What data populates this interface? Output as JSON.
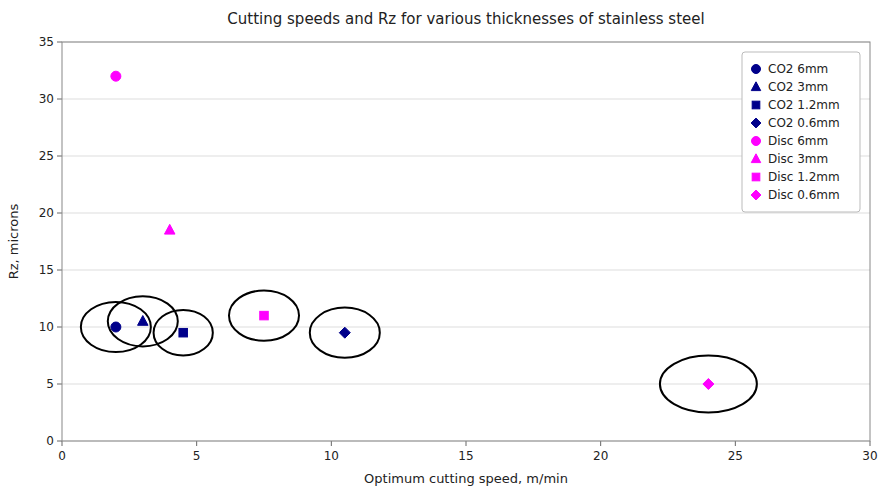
{
  "chart_data": {
    "type": "scatter",
    "title": "Cutting speeds and Rz for various thicknesses of stainless steel",
    "x_label": "Optimum cutting speed, m/min",
    "y_label": "Rz, microns",
    "xlim": [
      0,
      30
    ],
    "ylim": [
      0,
      35
    ],
    "xticks": [
      0,
      5,
      10,
      15,
      20,
      25,
      30
    ],
    "yticks": [
      0,
      5,
      10,
      15,
      20,
      25,
      30,
      35
    ],
    "grid": "y",
    "legend": "upper-right",
    "series": [
      {
        "name": "CO2 6mm",
        "color": "#00008B",
        "marker": "circle",
        "x": [
          2.0
        ],
        "values": [
          10.0
        ]
      },
      {
        "name": "CO2 3mm",
        "color": "#00008B",
        "marker": "triangle",
        "x": [
          3.0
        ],
        "values": [
          10.5
        ]
      },
      {
        "name": "CO2 1.2mm",
        "color": "#00008B",
        "marker": "square",
        "x": [
          4.5
        ],
        "values": [
          9.5
        ]
      },
      {
        "name": "CO2 0.6mm",
        "color": "#00008B",
        "marker": "diamond",
        "x": [
          10.5
        ],
        "values": [
          9.5
        ]
      },
      {
        "name": "Disc 6mm",
        "color": "#FF00FF",
        "marker": "circle",
        "x": [
          2.0
        ],
        "values": [
          32.0
        ]
      },
      {
        "name": "Disc 3mm",
        "color": "#FF00FF",
        "marker": "triangle",
        "x": [
          4.0
        ],
        "values": [
          18.5
        ]
      },
      {
        "name": "Disc 1.2mm",
        "color": "#FF00FF",
        "marker": "square",
        "x": [
          7.5
        ],
        "values": [
          11.0
        ]
      },
      {
        "name": "Disc 0.6mm",
        "color": "#FF00FF",
        "marker": "diamond",
        "x": [
          24.0
        ],
        "values": [
          5.0
        ]
      }
    ],
    "annotations": [
      {
        "type": "ellipse",
        "color": "black",
        "x": 2.0,
        "y": 10.0,
        "rx": 1.3,
        "ry": 2.2
      },
      {
        "type": "ellipse",
        "color": "black",
        "x": 3.0,
        "y": 10.5,
        "rx": 1.3,
        "ry": 2.2
      },
      {
        "type": "ellipse",
        "color": "black",
        "x": 4.5,
        "y": 9.5,
        "rx": 1.1,
        "ry": 2.0
      },
      {
        "type": "ellipse",
        "color": "black",
        "x": 7.5,
        "y": 11.0,
        "rx": 1.3,
        "ry": 2.2
      },
      {
        "type": "ellipse",
        "color": "black",
        "x": 10.5,
        "y": 9.5,
        "rx": 1.3,
        "ry": 2.2
      },
      {
        "type": "ellipse",
        "color": "black",
        "x": 24.0,
        "y": 5.0,
        "rx": 1.8,
        "ry": 2.5
      }
    ]
  }
}
